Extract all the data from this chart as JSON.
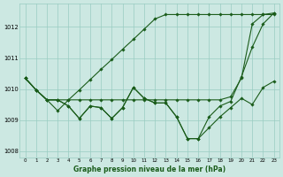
{
  "xlabel": "Graphe pression niveau de la mer (hPa)",
  "hours": [
    0,
    1,
    2,
    3,
    4,
    5,
    6,
    7,
    8,
    9,
    10,
    11,
    12,
    13,
    14,
    15,
    16,
    17,
    18,
    19,
    20,
    21,
    22,
    23
  ],
  "series": [
    [
      1010.35,
      1009.97,
      1009.65,
      1009.65,
      1009.65,
      1009.65,
      1009.65,
      1009.65,
      1009.65,
      1009.65,
      1009.65,
      1009.65,
      1009.65,
      1009.65,
      1009.65,
      1009.65,
      1009.65,
      1009.65,
      1009.65,
      1009.75,
      1010.35,
      1012.1,
      1012.4,
      1012.4
    ],
    [
      1010.35,
      1009.97,
      1009.65,
      1009.65,
      1009.45,
      1009.05,
      1009.45,
      1009.4,
      1009.05,
      1009.4,
      1010.05,
      1009.7,
      1009.55,
      1009.55,
      1009.1,
      1008.4,
      1008.4,
      1008.75,
      1009.1,
      1009.4,
      1009.7,
      1009.5,
      1010.05,
      1010.25
    ],
    [
      1010.35,
      1009.97,
      1009.65,
      1009.65,
      1009.45,
      1009.05,
      1009.45,
      1009.4,
      1009.05,
      1009.4,
      1010.05,
      1009.7,
      1009.55,
      1009.55,
      1009.1,
      1008.4,
      1008.4,
      1009.1,
      1009.45,
      1009.6,
      1010.4,
      1011.35,
      1012.1,
      1012.45
    ],
    [
      1010.35,
      1009.97,
      1009.65,
      1009.3,
      1009.65,
      1009.97,
      1010.3,
      1010.63,
      1010.95,
      1011.28,
      1011.6,
      1011.93,
      1012.26,
      1012.4,
      1012.4,
      1012.4,
      1012.4,
      1012.4,
      1012.4,
      1012.4,
      1012.4,
      1012.4,
      1012.4,
      1012.45
    ]
  ],
  "bg_color": "#cce8e2",
  "grid_color": "#99ccc2",
  "line_color": "#1a5c1a",
  "ylim": [
    1007.8,
    1012.75
  ],
  "yticks": [
    1008,
    1009,
    1010,
    1011,
    1012
  ],
  "marker": "D",
  "marker_size": 1.8,
  "linewidth": 0.8
}
